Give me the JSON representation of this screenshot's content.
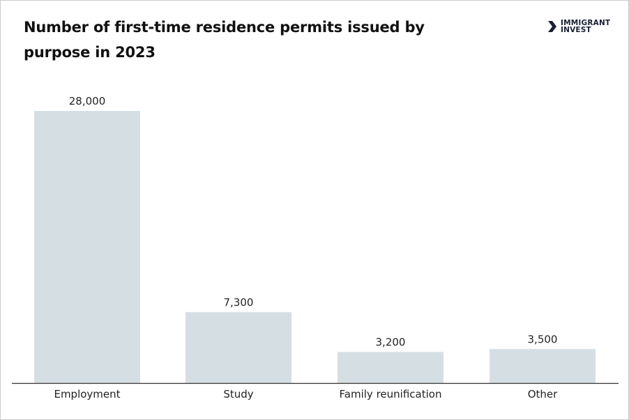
{
  "chart_data": {
    "type": "bar",
    "title": "Number of first-time residence permits issued by purpose in 2023",
    "categories": [
      "Employment",
      "Study",
      "Family reunification",
      "Other"
    ],
    "values": [
      28000,
      7300,
      3200,
      3500
    ],
    "value_labels": [
      "28,000",
      "7,300",
      "3,200",
      "3,500"
    ],
    "xlabel": "",
    "ylabel": "",
    "ylim": [
      0,
      28000
    ],
    "grid": false,
    "bar_color": "#d5dfe3",
    "axis_color": "#333333"
  },
  "brand": {
    "line1": "IMMIGRANT",
    "line2": "INVEST",
    "color": "#1a1f36"
  }
}
